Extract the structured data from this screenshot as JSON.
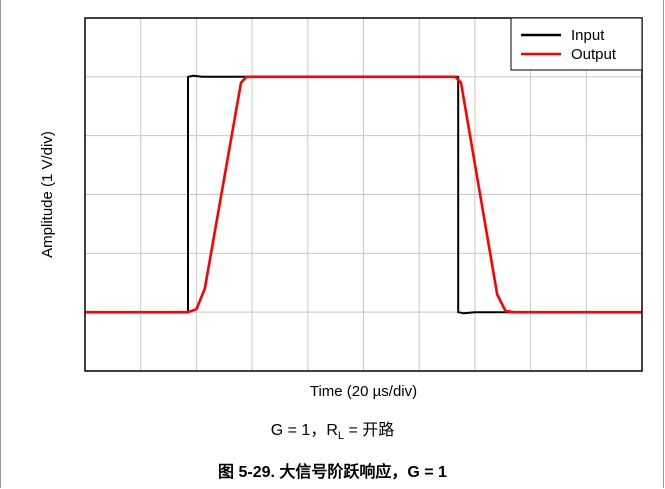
{
  "chart_data": {
    "type": "line",
    "xlabel": "Time (20 µs/div)",
    "ylabel": "Amplitude (1 V/div)",
    "x_divisions": 10,
    "y_divisions": 6,
    "xlim": [
      0,
      10
    ],
    "ylim": [
      0,
      6
    ],
    "grid": true,
    "legend_placement": "top-right",
    "series": [
      {
        "name": "Input",
        "color": "#000000",
        "points": [
          [
            0,
            1
          ],
          [
            1.85,
            1
          ],
          [
            1.85,
            5
          ],
          [
            1.95,
            5.02
          ],
          [
            2.1,
            5
          ],
          [
            6.7,
            5
          ],
          [
            6.7,
            1
          ],
          [
            6.8,
            0.98
          ],
          [
            7.0,
            1.0
          ],
          [
            10,
            1
          ]
        ]
      },
      {
        "name": "Output",
        "color": "#ff0000",
        "points": [
          [
            0,
            1
          ],
          [
            1.85,
            1
          ],
          [
            2.0,
            1.05
          ],
          [
            2.15,
            1.4
          ],
          [
            2.8,
            4.9
          ],
          [
            2.9,
            5
          ],
          [
            6.65,
            5
          ],
          [
            6.75,
            4.9
          ],
          [
            7.4,
            1.3
          ],
          [
            7.55,
            1.02
          ],
          [
            7.7,
            1
          ],
          [
            10,
            1
          ]
        ]
      }
    ]
  },
  "figure": {
    "condition_prefix": "G = 1，R",
    "condition_sub": "L",
    "condition_suffix": " = 开路",
    "caption": "图 5-29. 大信号阶跃响应，G = 1"
  }
}
